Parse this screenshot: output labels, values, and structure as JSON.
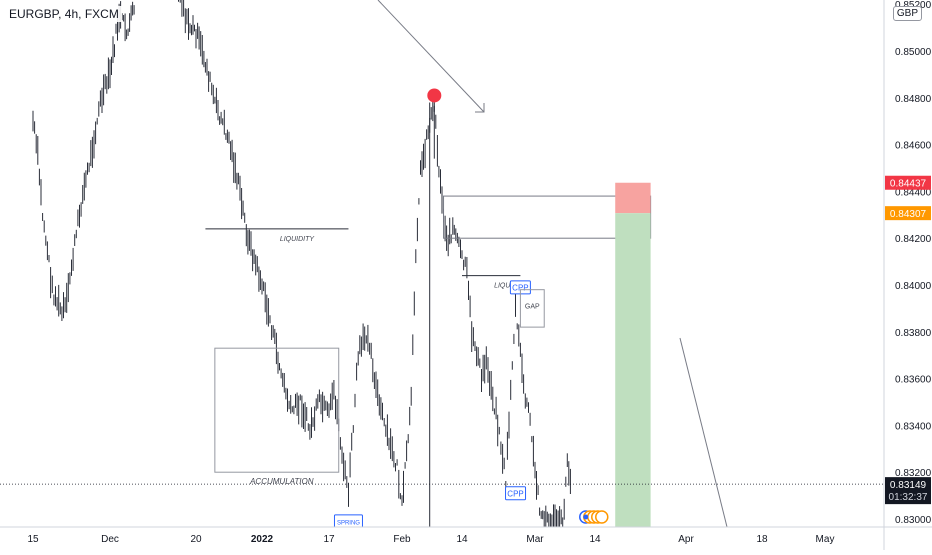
{
  "header": {
    "symbol_label": "EURGBP, 4h, FXCM",
    "currency": "GBP"
  },
  "chart_data": {
    "type": "line",
    "ylim": [
      0.829,
      0.854
    ],
    "y_ticks": [
      "0.85000",
      "0.84800",
      "0.84600",
      "0.84400",
      "0.84200",
      "0.84000",
      "0.83800",
      "0.83600",
      "0.83400",
      "0.83200",
      "0.83000"
    ],
    "top_partial_tick": "0.85200",
    "x_ticks": [
      "15",
      "Dec",
      "20",
      "2022",
      "17",
      "Feb",
      "14",
      "Mar",
      "14",
      "Apr",
      "18",
      "May"
    ],
    "bold_x_ticks": [
      "2022"
    ],
    "price_series": [
      [
        "Nov 15",
        0.847
      ],
      [
        "Nov 16",
        0.8455
      ],
      [
        "Nov 17",
        0.843
      ],
      [
        "Nov 18",
        0.8415
      ],
      [
        "Nov 19",
        0.8398
      ],
      [
        "Nov 21",
        0.8388
      ],
      [
        "Nov 22",
        0.8392
      ],
      [
        "Nov 23",
        0.8408
      ],
      [
        "Nov 25",
        0.8435
      ],
      [
        "Nov 27",
        0.8455
      ],
      [
        "Nov 29",
        0.8478
      ],
      [
        "Dec 1",
        0.849
      ],
      [
        "Dec 3",
        0.8515
      ],
      [
        "Dec 5",
        0.8508
      ],
      [
        "Dec 7",
        0.8525
      ],
      [
        "Dec 9",
        0.8535
      ],
      [
        "Dec 12",
        0.853
      ],
      [
        "Dec 15",
        0.8538
      ],
      [
        "Dec 18",
        0.8512
      ],
      [
        "Dec 20",
        0.8508
      ],
      [
        "Dec 22",
        0.8495
      ],
      [
        "Dec 24",
        0.8478
      ],
      [
        "Dec 27",
        0.8462
      ],
      [
        "Dec 29",
        0.8443
      ],
      [
        "Dec 31",
        0.842
      ],
      [
        "Jan 3",
        0.84
      ],
      [
        "Jan 5",
        0.8382
      ],
      [
        "Jan 7",
        0.8362
      ],
      [
        "Jan 9",
        0.8346
      ],
      [
        "Jan 11",
        0.835
      ],
      [
        "Jan 13",
        0.8338
      ],
      [
        "Jan 15",
        0.835
      ],
      [
        "Jan 17",
        0.8344
      ],
      [
        "Jan 18",
        0.8355
      ],
      [
        "Jan 19",
        0.834
      ],
      [
        "Jan 20",
        0.8322
      ],
      [
        "Jan 21",
        0.8312
      ],
      [
        "Jan 22",
        0.834
      ],
      [
        "Jan 23",
        0.837
      ],
      [
        "Jan 25",
        0.838
      ],
      [
        "Jan 27",
        0.8352
      ],
      [
        "Jan 29",
        0.8335
      ],
      [
        "Jan 31",
        0.8322
      ],
      [
        "Feb 1",
        0.8305
      ],
      [
        "Feb 3",
        0.835
      ],
      [
        "Feb 4",
        0.8415
      ],
      [
        "Feb 5",
        0.8448
      ],
      [
        "Feb 7",
        0.847
      ],
      [
        "Feb 8",
        0.8478
      ],
      [
        "Feb 9",
        0.845
      ],
      [
        "Feb 10",
        0.843
      ],
      [
        "Feb 11",
        0.8418
      ],
      [
        "Feb 12",
        0.8425
      ],
      [
        "Feb 14",
        0.8412
      ],
      [
        "Feb 15",
        0.8405
      ],
      [
        "Feb 16",
        0.838
      ],
      [
        "Feb 17",
        0.8372
      ],
      [
        "Feb 18",
        0.836
      ],
      [
        "Feb 19",
        0.8368
      ],
      [
        "Feb 21",
        0.8345
      ],
      [
        "Feb 22",
        0.8332
      ],
      [
        "Feb 23",
        0.8316
      ],
      [
        "Feb 24",
        0.8355
      ],
      [
        "Feb 25",
        0.839
      ],
      [
        "Feb 26",
        0.837
      ],
      [
        "Feb 27",
        0.8352
      ],
      [
        "Feb 28",
        0.8342
      ],
      [
        "Mar 1",
        0.832
      ],
      [
        "Mar 2",
        0.8306
      ],
      [
        "Mar 3",
        0.8299
      ],
      [
        "Mar 7",
        0.8298
      ],
      [
        "Mar 8",
        0.8323
      ],
      [
        "Mar 9",
        0.8315
      ]
    ],
    "annotations": [
      {
        "label": "LIQUIDITY",
        "level": 0.8424,
        "from": "Dec 22",
        "to": "Jan 21"
      },
      {
        "label": "ACCUMULATION",
        "y_top": 0.8373,
        "y_bottom": 0.832,
        "from": "Dec 24",
        "to": "Jan 19"
      },
      {
        "label": "SPRING",
        "y": 0.8299,
        "date": "Jan 21"
      },
      {
        "label": "LIQUIDITY",
        "level": 0.8404,
        "from": "Feb 14",
        "to": "Feb 26"
      },
      {
        "label": "CPP",
        "y": 0.8399,
        "date": "Feb 26"
      },
      {
        "label": "GAP",
        "y_top": 0.8398,
        "y_bottom": 0.8382,
        "from": "Feb 26",
        "to": "Mar 3"
      },
      {
        "label": "CPP",
        "y": 0.8311,
        "date": "Feb 25"
      }
    ],
    "zone_box": {
      "y_top": 0.8438,
      "y_bottom": 0.842,
      "from": "Feb 10",
      "to": "Mar 25"
    },
    "position": {
      "side": "short",
      "entry": 0.84307,
      "stop": 0.84437,
      "target": 0.829,
      "from": "Mar 18",
      "to": "Mar 25",
      "stop_color": "#f7a3a0",
      "target_color": "#bfdfbf"
    },
    "current_price": 0.83149,
    "current_price_label": "0.83149",
    "countdown": "01:32:37",
    "price_badges": [
      {
        "value": "0.84437",
        "color": "#f23645"
      },
      {
        "value": "0.84307",
        "color": "#ff9800"
      }
    ],
    "colors": {
      "candles": "#2a2e39",
      "marker": "#f23645",
      "grid": "#f0f3fa",
      "price_line": "#131722"
    }
  }
}
